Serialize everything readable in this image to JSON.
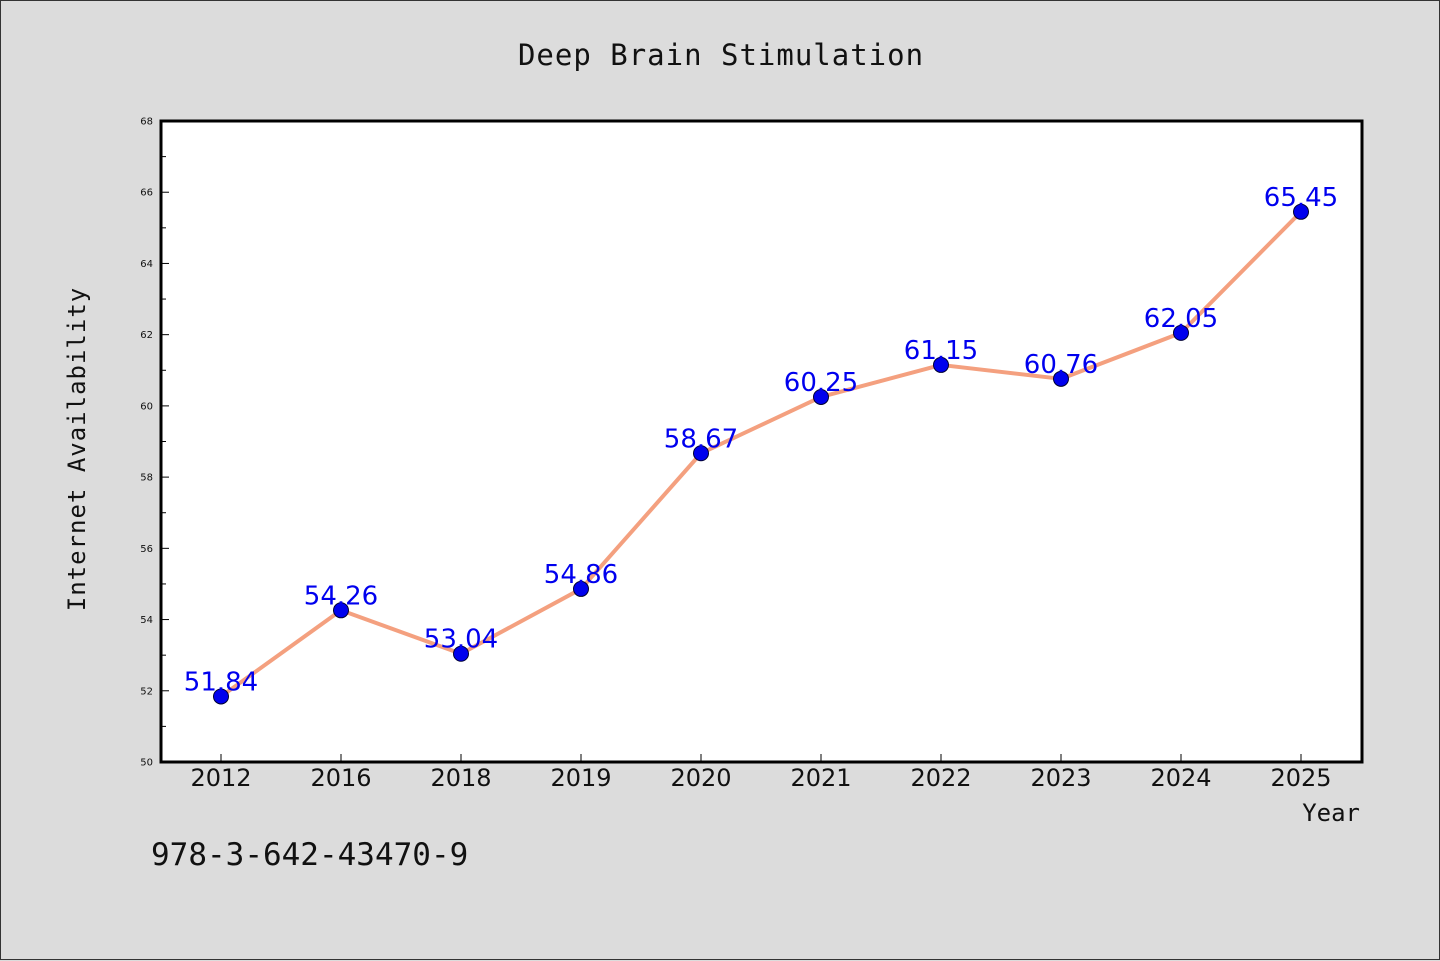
{
  "colors": {
    "background": "#dcdcdc",
    "plot_background": "#ffffff",
    "line": "#f4a07f",
    "marker": "#0000ee",
    "data_label": "#0000ee",
    "text": "#111111"
  },
  "footer": {
    "isbn": "978-3-642-43470-9"
  },
  "chart_data": {
    "type": "line",
    "title": "Deep Brain Stimulation",
    "xlabel": "Year",
    "ylabel": "Internet Availability",
    "categories": [
      "2012",
      "2016",
      "2018",
      "2019",
      "2020",
      "2021",
      "2022",
      "2023",
      "2024",
      "2025"
    ],
    "series": [
      {
        "values": [
          51.84,
          54.26,
          53.04,
          54.86,
          58.67,
          60.25,
          61.15,
          60.76,
          62.05,
          65.45
        ],
        "data_labels": [
          "51.84",
          "54.26",
          "53.04",
          "54.86",
          "58.67",
          "60.25",
          "61.15",
          "60.76",
          "62.05",
          "65.45"
        ]
      }
    ],
    "ylim": [
      50,
      68
    ],
    "yticks": [
      "50",
      "52",
      "54",
      "56",
      "58",
      "60",
      "62",
      "64",
      "66",
      "68"
    ],
    "y_minor_step": 1,
    "grid": false,
    "legend": "none"
  }
}
